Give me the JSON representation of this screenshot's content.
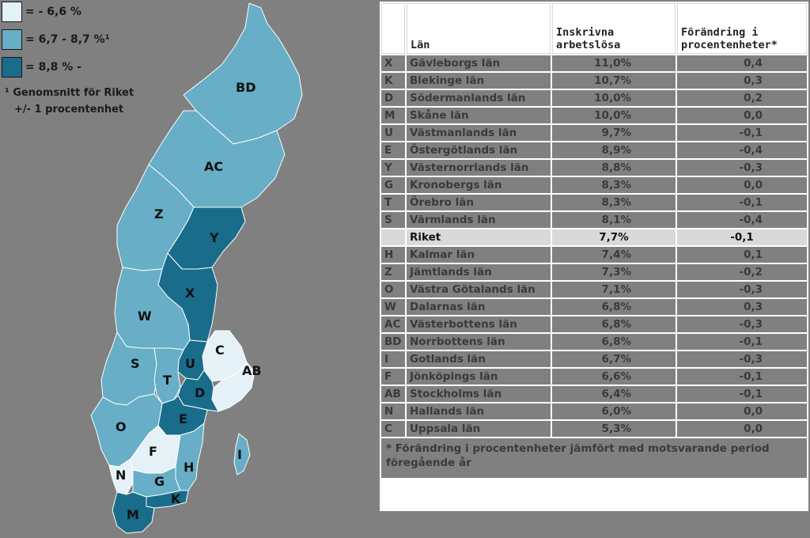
{
  "legend": {
    "items": [
      {
        "label": "= - 6,6 %",
        "color": "#e4f2f7"
      },
      {
        "label": "= 6,7 - 8,7 %¹",
        "color": "#67aec6"
      },
      {
        "label": "= 8,8 % -",
        "color": "#196d8a"
      }
    ],
    "note_line1": "¹ Genomsnitt för Riket",
    "note_line2": "+/- 1 procentenhet"
  },
  "map": {
    "labels": [
      "BD",
      "AC",
      "Z",
      "Y",
      "X",
      "W",
      "C",
      "AB",
      "U",
      "S",
      "T",
      "D",
      "E",
      "O",
      "F",
      "N",
      "G",
      "H",
      "K",
      "I",
      "M"
    ]
  },
  "table": {
    "headers": {
      "lan": "Län",
      "inskrivna": "Inskrivna arbetslösa",
      "forandring": "Förändring i procentenheter*"
    },
    "rows": [
      {
        "code": "X",
        "name": "Gävleborgs län",
        "value": "11,0%",
        "change": "0,4"
      },
      {
        "code": "K",
        "name": "Blekinge län",
        "value": "10,7%",
        "change": "0,3"
      },
      {
        "code": "D",
        "name": "Södermanlands län",
        "value": "10,0%",
        "change": "0,2"
      },
      {
        "code": "M",
        "name": "Skåne län",
        "value": "10,0%",
        "change": "0,0"
      },
      {
        "code": "U",
        "name": "Västmanlands län",
        "value": "9,7%",
        "change": "-0,1"
      },
      {
        "code": "E",
        "name": "Östergötlands län",
        "value": "8,9%",
        "change": "-0,4"
      },
      {
        "code": "Y",
        "name": "Västernorrlands län",
        "value": "8,8%",
        "change": "-0,3"
      },
      {
        "code": "G",
        "name": "Kronobergs län",
        "value": "8,3%",
        "change": "0,0"
      },
      {
        "code": "T",
        "name": "Örebro län",
        "value": "8,3%",
        "change": "-0,1"
      },
      {
        "code": "S",
        "name": "Värmlands län",
        "value": "8,1%",
        "change": "-0,4"
      },
      {
        "code": "",
        "name": "Riket",
        "value": "7,7%",
        "change": "-0,1",
        "highlight": true
      },
      {
        "code": "H",
        "name": "Kalmar län",
        "value": "7,4%",
        "change": "0,1"
      },
      {
        "code": "Z",
        "name": "Jämtlands län",
        "value": "7,3%",
        "change": "-0,2"
      },
      {
        "code": "O",
        "name": "Västra Götalands län",
        "value": "7,1%",
        "change": "-0,3"
      },
      {
        "code": "W",
        "name": "Dalarnas län",
        "value": "6,8%",
        "change": "0,3"
      },
      {
        "code": "AC",
        "name": "Västerbottens län",
        "value": "6,8%",
        "change": "-0,3"
      },
      {
        "code": "BD",
        "name": "Norrbottens län",
        "value": "6,8%",
        "change": "-0,1"
      },
      {
        "code": "I",
        "name": "Gotlands län",
        "value": "6,7%",
        "change": "-0,3"
      },
      {
        "code": "F",
        "name": "Jönköpings län",
        "value": "6,6%",
        "change": "-0,1"
      },
      {
        "code": "AB",
        "name": "Stockholms län",
        "value": "6,4%",
        "change": "-0,1"
      },
      {
        "code": "N",
        "name": "Hallands län",
        "value": "6,0%",
        "change": "0,0"
      },
      {
        "code": "C",
        "name": "Uppsala län",
        "value": "5,3%",
        "change": "0,0"
      }
    ],
    "footnote": "* Förändring i procentenheter jämfört med motsvarande period föregående år"
  }
}
